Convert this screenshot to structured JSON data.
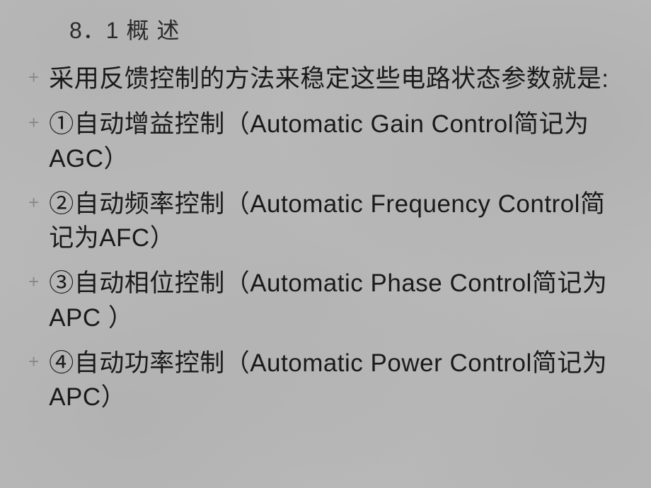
{
  "slide": {
    "title": "8．1 概 述",
    "bullets": [
      "采用反馈控制的方法来稳定这些电路状态参数就是:",
      "①自动增益控制（Automatic Gain Control简记为AGC）",
      "②自动频率控制（Automatic Frequency Control简记为AFC）",
      "③自动相位控制（Automatic Phase Control简记为APC ）",
      "④自动功率控制（Automatic Power Control简记为APC）"
    ],
    "bullet_marker": "+",
    "colors": {
      "background": "#bababa",
      "title_text": "#2a2a2a",
      "body_text": "#1a1a1a",
      "bullet_marker": "#888888"
    },
    "typography": {
      "title_fontsize": 32,
      "body_fontsize": 35,
      "marker_fontsize": 26,
      "line_height": 1.38
    }
  }
}
